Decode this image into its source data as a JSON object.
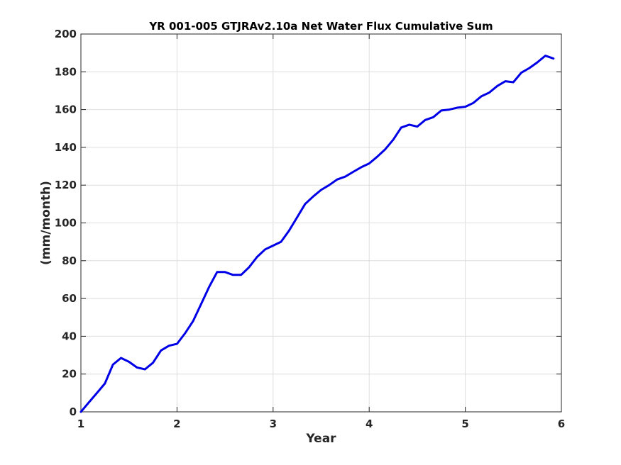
{
  "chart_data": {
    "type": "line",
    "title": "YR 001-005 GTJRAv2.10a Net Water Flux Cumulative Sum",
    "xlabel": "Year",
    "ylabel": "(mm/month)",
    "xlim": [
      1,
      6
    ],
    "ylim": [
      0,
      200
    ],
    "xticks": [
      1,
      2,
      3,
      4,
      5,
      6
    ],
    "yticks": [
      0,
      20,
      40,
      60,
      80,
      100,
      120,
      140,
      160,
      180,
      200
    ],
    "grid": true,
    "series_color": "#0000e6",
    "series": [
      {
        "x": [
          1.0,
          1.083,
          1.167,
          1.25,
          1.333,
          1.417,
          1.5,
          1.583,
          1.667,
          1.75,
          1.833,
          1.917,
          2.0,
          2.083,
          2.167,
          2.25,
          2.333,
          2.417,
          2.5,
          2.583,
          2.667,
          2.75,
          2.833,
          2.917,
          3.0,
          3.083,
          3.167,
          3.25,
          3.333,
          3.417,
          3.5,
          3.583,
          3.667,
          3.75,
          3.833,
          3.917,
          4.0,
          4.083,
          4.167,
          4.25,
          4.333,
          4.417,
          4.5,
          4.583,
          4.667,
          4.75,
          4.833,
          4.917,
          5.0,
          5.083,
          5.167,
          5.25,
          5.333,
          5.417,
          5.5,
          5.583,
          5.667,
          5.75,
          5.833,
          5.917
        ],
        "y": [
          0.0,
          5.0,
          10.0,
          15.0,
          25.0,
          28.5,
          26.5,
          23.5,
          22.5,
          26.0,
          32.5,
          35.0,
          36.0,
          41.5,
          48.0,
          57.0,
          66.0,
          74.0,
          74.0,
          72.5,
          72.5,
          76.5,
          82.0,
          86.0,
          88.0,
          90.0,
          96.0,
          103.0,
          110.0,
          114.0,
          117.5,
          120.0,
          123.0,
          124.5,
          127.0,
          129.5,
          131.5,
          135.0,
          139.0,
          144.0,
          150.5,
          152.0,
          151.0,
          154.5,
          156.0,
          159.5,
          160.0,
          161.0,
          161.5,
          163.5,
          167.0,
          169.0,
          172.5,
          175.0,
          174.5,
          179.5,
          182.0,
          185.0,
          188.5,
          187.0
        ]
      }
    ]
  }
}
